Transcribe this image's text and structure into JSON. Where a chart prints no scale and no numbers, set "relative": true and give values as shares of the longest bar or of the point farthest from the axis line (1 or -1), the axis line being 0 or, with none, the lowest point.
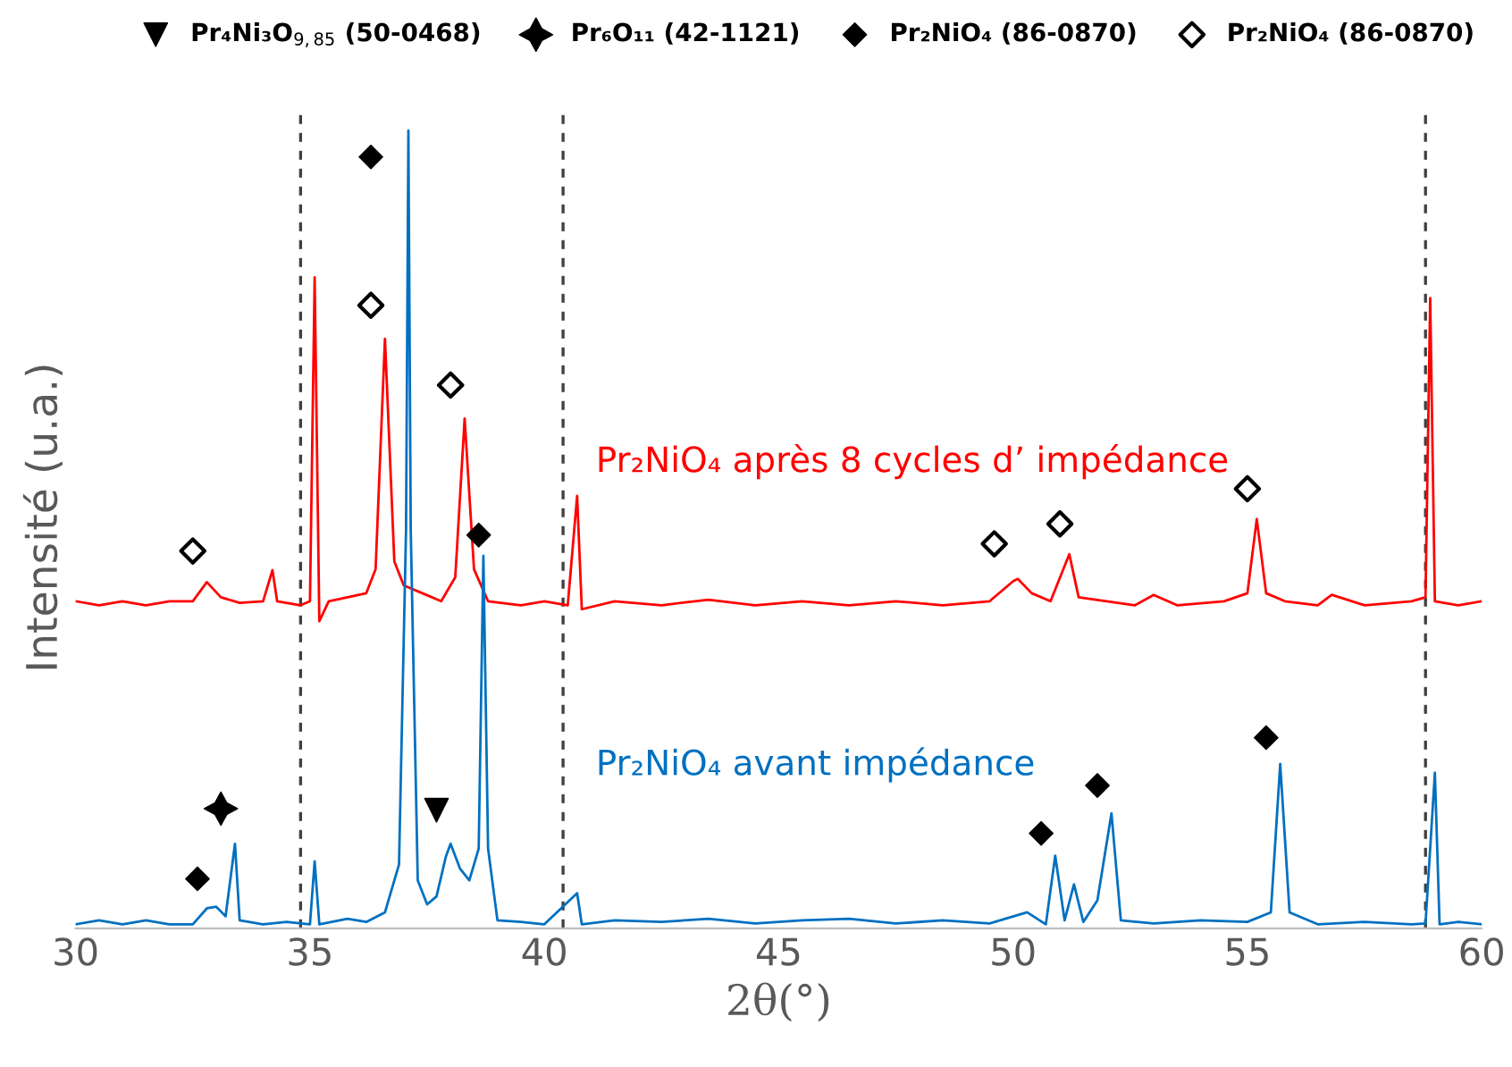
{
  "chart_data": {
    "type": "line",
    "relative": true,
    "xlabel": "2θ(°)",
    "ylabel": "Intensité (u.a.)",
    "xlim": [
      30,
      60
    ],
    "xticks": [
      30,
      35,
      40,
      45,
      50,
      55,
      60
    ],
    "tick_labels": "x",
    "grid": false,
    "legend": "top",
    "line_style": "solid",
    "series": [
      {
        "name": "Pr₂NiO₄ après 8 cycles d’ impédance",
        "color": "#ff0000",
        "x": [
          30.0,
          30.5,
          31.0,
          31.5,
          32.0,
          32.5,
          32.8,
          33.1,
          33.5,
          34.0,
          34.2,
          34.3,
          34.8,
          35.0,
          35.1,
          35.2,
          35.4,
          35.8,
          36.2,
          36.4,
          36.6,
          36.8,
          37.0,
          37.4,
          37.8,
          38.1,
          38.3,
          38.5,
          38.8,
          39.5,
          40.0,
          40.5,
          40.7,
          40.8,
          41.5,
          42.5,
          43.5,
          44.5,
          45.5,
          46.5,
          47.5,
          48.5,
          49.5,
          50.0,
          50.1,
          50.4,
          50.8,
          51.2,
          51.4,
          52.0,
          52.6,
          53.0,
          53.5,
          54.5,
          55.0,
          55.2,
          55.4,
          55.8,
          56.5,
          56.8,
          57.5,
          58.5,
          58.8,
          58.9,
          59.0,
          59.5,
          60.0
        ],
        "values": [
          0.41,
          0.405,
          0.41,
          0.405,
          0.41,
          0.41,
          0.434,
          0.415,
          0.408,
          0.41,
          0.449,
          0.41,
          0.405,
          0.41,
          0.816,
          0.385,
          0.41,
          0.415,
          0.42,
          0.45,
          0.739,
          0.46,
          0.43,
          0.42,
          0.41,
          0.44,
          0.639,
          0.45,
          0.41,
          0.405,
          0.41,
          0.405,
          0.542,
          0.4,
          0.41,
          0.405,
          0.412,
          0.405,
          0.41,
          0.405,
          0.41,
          0.405,
          0.41,
          0.435,
          0.438,
          0.42,
          0.41,
          0.469,
          0.415,
          0.41,
          0.405,
          0.418,
          0.405,
          0.41,
          0.42,
          0.513,
          0.42,
          0.41,
          0.405,
          0.418,
          0.405,
          0.41,
          0.415,
          0.79,
          0.41,
          0.405,
          0.41
        ]
      },
      {
        "name": "Pr₂NiO₄ avant impédance",
        "color": "#0070c0",
        "x": [
          30.0,
          30.5,
          31.0,
          31.5,
          32.0,
          32.5,
          32.8,
          33.0,
          33.2,
          33.4,
          33.5,
          34.0,
          34.5,
          35.0,
          35.1,
          35.2,
          35.8,
          36.2,
          36.6,
          36.9,
          37.05,
          37.1,
          37.15,
          37.3,
          37.5,
          37.7,
          37.9,
          38.0,
          38.2,
          38.4,
          38.6,
          38.7,
          38.8,
          39.0,
          39.5,
          40.0,
          40.7,
          40.8,
          41.5,
          42.5,
          43.5,
          44.5,
          45.5,
          46.5,
          47.5,
          48.5,
          49.5,
          50.3,
          50.7,
          50.9,
          51.1,
          51.3,
          51.5,
          51.8,
          52.1,
          52.3,
          53.0,
          54.0,
          55.0,
          55.5,
          55.7,
          55.9,
          56.5,
          57.5,
          58.5,
          58.8,
          59.0,
          59.1,
          59.5,
          60.0
        ],
        "values": [
          0.005,
          0.01,
          0.005,
          0.01,
          0.005,
          0.005,
          0.025,
          0.027,
          0.015,
          0.106,
          0.01,
          0.005,
          0.008,
          0.005,
          0.084,
          0.005,
          0.012,
          0.008,
          0.02,
          0.08,
          0.5,
          1.0,
          0.5,
          0.06,
          0.03,
          0.04,
          0.09,
          0.106,
          0.075,
          0.06,
          0.1,
          0.467,
          0.1,
          0.01,
          0.008,
          0.005,
          0.044,
          0.005,
          0.01,
          0.008,
          0.012,
          0.006,
          0.01,
          0.012,
          0.006,
          0.01,
          0.006,
          0.02,
          0.005,
          0.091,
          0.01,
          0.055,
          0.008,
          0.035,
          0.144,
          0.01,
          0.006,
          0.01,
          0.008,
          0.02,
          0.206,
          0.02,
          0.005,
          0.008,
          0.005,
          0.006,
          0.195,
          0.005,
          0.008,
          0.005
        ]
      },
      {
        "type": "scatter",
        "name": "Pr₄Ni₃O$_{9,85}$ (50-0468)",
        "color": "#000000",
        "marker": "triangle",
        "x": [
          37.7
        ],
        "values": [
          0.148
        ]
      },
      {
        "type": "scatter",
        "name": "Pr₆O₁₁ (42-1121)",
        "color": "#000000",
        "marker": "star",
        "x": [
          33.1
        ],
        "values": [
          0.15
        ]
      },
      {
        "type": "scatter",
        "name": "Pr₂NiO₄ (86-0870)",
        "color": "#000000",
        "marker": "diamond",
        "x": [
          36.3,
          38.6,
          32.6,
          50.6,
          51.8,
          55.4
        ],
        "values": [
          0.967,
          0.493,
          0.062,
          0.119,
          0.179,
          0.239
        ]
      },
      {
        "type": "scatter",
        "name": "Pr₂NiO₄ (86-0870)",
        "color": "#ffffff",
        "marker": "diamond",
        "x": [
          32.5,
          36.3,
          38.0,
          49.6,
          51.0,
          55.0
        ],
        "values": [
          0.473,
          0.781,
          0.681,
          0.482,
          0.507,
          0.551
        ]
      }
    ],
    "ref_lines": [
      {
        "axis": "x",
        "value": 34.8,
        "color": "#404040",
        "line_style": "dashed"
      },
      {
        "axis": "x",
        "value": 40.4,
        "color": "#404040",
        "line_style": "dashed"
      },
      {
        "axis": "x",
        "value": 58.8,
        "color": "#404040",
        "line_style": "dashed"
      }
    ]
  }
}
